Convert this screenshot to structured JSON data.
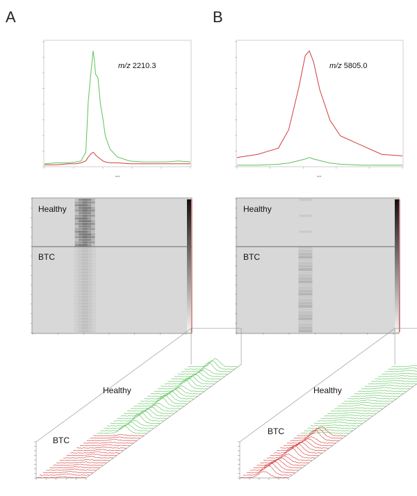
{
  "panels": [
    {
      "letter": "A",
      "annotation_prefix": "m/z",
      "annotation_value": "2210.3",
      "group_top": "Healthy",
      "group_bottom": "BTC"
    },
    {
      "letter": "B",
      "annotation_prefix": "m/z",
      "annotation_value": "5805.0",
      "group_top": "Healthy",
      "group_bottom": "BTC"
    }
  ],
  "colors": {
    "healthy": "#5cc15c",
    "btc": "#d23a3a",
    "gel_bg": "#d8d8d8",
    "band": "#707070"
  },
  "chart_data": [
    {
      "type": "line",
      "panel": "A",
      "title": "",
      "xlabel": "m/z",
      "ylabel": "",
      "x": [
        2190,
        2195,
        2200,
        2203,
        2205,
        2207,
        2208,
        2209,
        2210,
        2210.5,
        2211,
        2212,
        2213,
        2214,
        2215,
        2217,
        2220,
        2225,
        2230,
        2235,
        2240,
        2245,
        2250
      ],
      "series": [
        {
          "name": "Healthy",
          "color": "#5cc15c",
          "values": [
            0.3,
            0.4,
            0.4,
            0.5,
            0.6,
            1.5,
            6.8,
            9.5,
            12.0,
            11.0,
            9.6,
            9.2,
            6.5,
            5.0,
            3.2,
            1.8,
            1.0,
            0.6,
            0.5,
            0.5,
            0.5,
            0.6,
            0.5
          ]
        },
        {
          "name": "BTC",
          "color": "#d23a3a",
          "values": [
            0.2,
            0.2,
            0.3,
            0.3,
            0.4,
            0.6,
            1.0,
            1.3,
            1.5,
            1.4,
            1.2,
            1.0,
            0.8,
            0.6,
            0.5,
            0.4,
            0.4,
            0.3,
            0.3,
            0.3,
            0.3,
            0.3,
            0.3
          ]
        }
      ]
    },
    {
      "type": "line",
      "panel": "B",
      "title": "",
      "xlabel": "m/z",
      "ylabel": "",
      "x": [
        5770,
        5780,
        5790,
        5795,
        5800,
        5803,
        5805,
        5807,
        5810,
        5815,
        5820,
        5830,
        5840,
        5850
      ],
      "series": [
        {
          "name": "Healthy",
          "color": "#5cc15c",
          "values": [
            0.05,
            0.05,
            0.08,
            0.12,
            0.2,
            0.25,
            0.3,
            0.25,
            0.2,
            0.12,
            0.08,
            0.05,
            0.05,
            0.05
          ]
        },
        {
          "name": "BTC",
          "color": "#d23a3a",
          "values": [
            0.3,
            0.4,
            0.6,
            1.2,
            2.6,
            3.6,
            3.75,
            3.4,
            2.5,
            1.5,
            1.0,
            0.7,
            0.4,
            0.35
          ]
        }
      ]
    },
    {
      "type": "heatmap",
      "panel": "A",
      "xlim": [
        2190,
        2250
      ],
      "rows_healthy": 18,
      "rows_btc": 28,
      "band_centers_mz": [
        2209,
        2210.5,
        2212
      ]
    },
    {
      "type": "heatmap",
      "panel": "B",
      "xlim": [
        5770,
        5850
      ],
      "rows_healthy": 18,
      "rows_btc": 28,
      "band_centers_mz": [
        5805
      ]
    }
  ]
}
